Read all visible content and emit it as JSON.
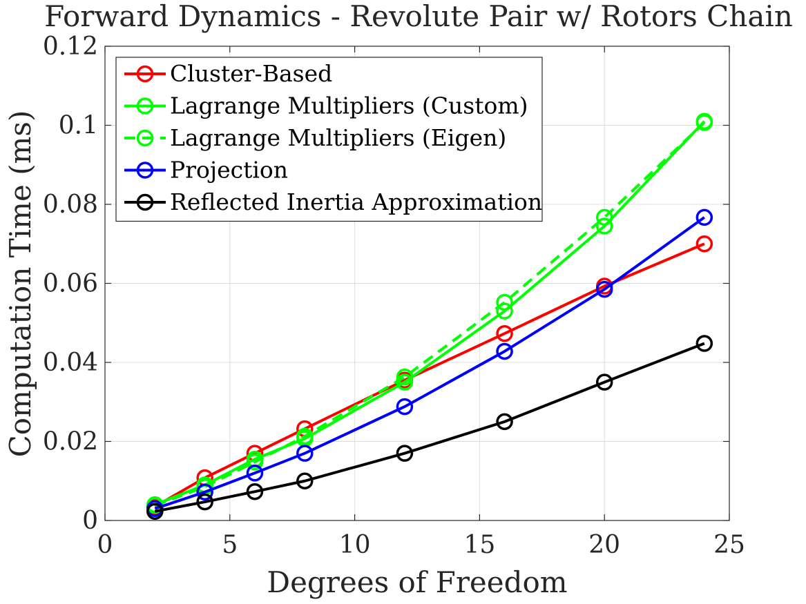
{
  "chart_data": {
    "type": "line",
    "title": "Forward Dynamics - Revolute Pair w/ Rotors Chain",
    "xlabel": "Degrees of Freedom",
    "ylabel": "Computation Time (ms)",
    "xlim": [
      0,
      25
    ],
    "ylim": [
      0,
      0.12
    ],
    "xticks": [
      0,
      5,
      10,
      15,
      20,
      25
    ],
    "yticks": [
      0,
      0.02,
      0.04,
      0.06,
      0.08,
      0.1,
      0.12
    ],
    "xtick_labels": [
      "0",
      "5",
      "10",
      "15",
      "20",
      "25"
    ],
    "ytick_labels": [
      "0",
      "0.02",
      "0.04",
      "0.06",
      "0.08",
      "0.1",
      "0.12"
    ],
    "grid": true,
    "legend_position": "top-left",
    "x": [
      2,
      4,
      6,
      8,
      12,
      16,
      20,
      24
    ],
    "series": [
      {
        "name": "Cluster-Based",
        "color": "#ff0000",
        "dash": "solid",
        "marker": "circle",
        "values": [
          0.0035,
          0.0108,
          0.017,
          0.0232,
          0.0355,
          0.0473,
          0.0593,
          0.07
        ]
      },
      {
        "name": "Lagrange Multipliers (Custom)",
        "color": "#00ff00",
        "dash": "solid",
        "marker": "circle",
        "values": [
          0.004,
          0.009,
          0.0155,
          0.0207,
          0.035,
          0.053,
          0.0745,
          0.101
        ]
      },
      {
        "name": "Lagrange Multipliers (Eigen)",
        "color": "#00ff00",
        "dash": "dashed",
        "marker": "circle",
        "values": [
          0.0038,
          0.0085,
          0.0148,
          0.0213,
          0.0363,
          0.0552,
          0.0767,
          0.1007
        ]
      },
      {
        "name": "Projection",
        "color": "#0000ff",
        "dash": "solid",
        "marker": "circle",
        "values": [
          0.003,
          0.0072,
          0.012,
          0.017,
          0.0288,
          0.0428,
          0.0585,
          0.0767
        ]
      },
      {
        "name": "Reflected Inertia Approximation",
        "color": "#000000",
        "dash": "solid",
        "marker": "circle",
        "values": [
          0.0023,
          0.0047,
          0.0073,
          0.01,
          0.017,
          0.025,
          0.035,
          0.0448
        ]
      }
    ]
  }
}
